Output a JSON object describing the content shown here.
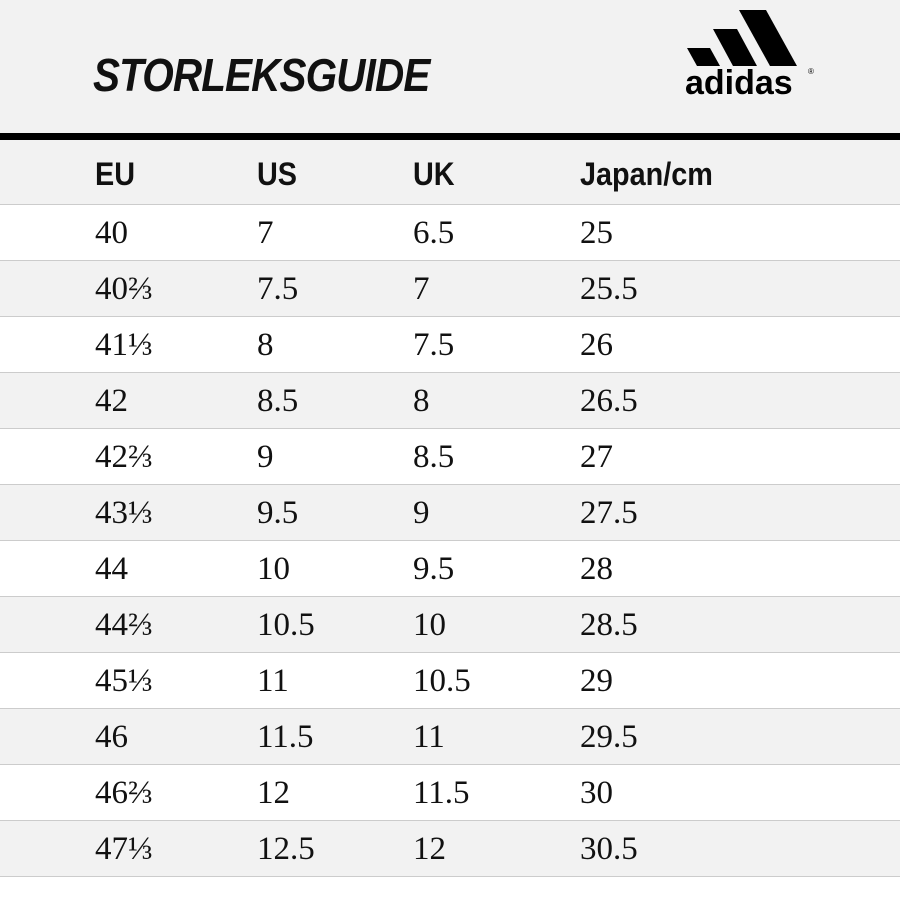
{
  "header": {
    "title": "STORLEKSGUIDE",
    "logo": {
      "text": "adidas",
      "mark": "®"
    }
  },
  "table": {
    "columns": [
      "EU",
      "US",
      "UK",
      "Japan/cm"
    ],
    "rows": [
      [
        "40",
        "7",
        "6.5",
        "25"
      ],
      [
        "40⅔",
        "7.5",
        "7",
        "25.5"
      ],
      [
        "41⅓",
        "8",
        "7.5",
        "26"
      ],
      [
        "42",
        "8.5",
        "8",
        "26.5"
      ],
      [
        "42⅔",
        "9",
        "8.5",
        "27"
      ],
      [
        "43⅓",
        "9.5",
        "9",
        "27.5"
      ],
      [
        "44",
        "10",
        "9.5",
        "28"
      ],
      [
        "44⅔",
        "10.5",
        "10",
        "28.5"
      ],
      [
        "45⅓",
        "11",
        "10.5",
        "29"
      ],
      [
        "46",
        "11.5",
        "11",
        "29.5"
      ],
      [
        "46⅔",
        "12",
        "11.5",
        "30"
      ],
      [
        "47⅓",
        "12.5",
        "12",
        "30.5"
      ]
    ]
  }
}
